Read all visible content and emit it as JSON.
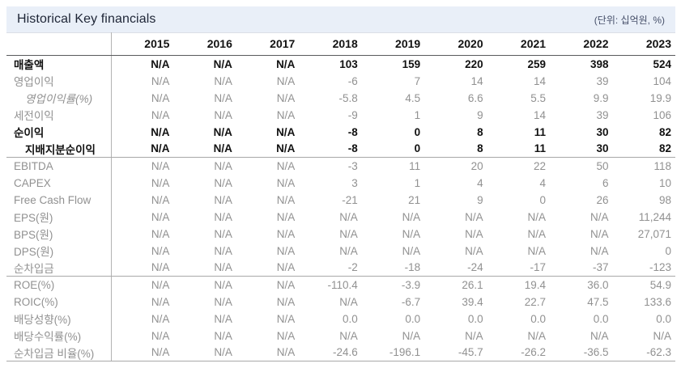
{
  "header": {
    "title": "Historical Key financials",
    "unit_note": "(단위: 십억원, %)"
  },
  "table": {
    "columns": [
      "2015",
      "2016",
      "2017",
      "2018",
      "2019",
      "2020",
      "2021",
      "2022",
      "2023"
    ],
    "rows": [
      {
        "label": "매출액",
        "emphasis": true,
        "indent": false,
        "italic": false,
        "group_end": false,
        "values": [
          "N/A",
          "N/A",
          "N/A",
          "103",
          "159",
          "220",
          "259",
          "398",
          "524"
        ]
      },
      {
        "label": "영업이익",
        "emphasis": false,
        "indent": false,
        "italic": false,
        "group_end": false,
        "values": [
          "N/A",
          "N/A",
          "N/A",
          "-6",
          "7",
          "14",
          "14",
          "39",
          "104"
        ]
      },
      {
        "label": "영업이익률(%)",
        "emphasis": false,
        "indent": true,
        "italic": true,
        "group_end": false,
        "values": [
          "N/A",
          "N/A",
          "N/A",
          "-5.8",
          "4.5",
          "6.6",
          "5.5",
          "9.9",
          "19.9"
        ]
      },
      {
        "label": "세전이익",
        "emphasis": false,
        "indent": false,
        "italic": false,
        "group_end": false,
        "values": [
          "N/A",
          "N/A",
          "N/A",
          "-9",
          "1",
          "9",
          "14",
          "39",
          "106"
        ]
      },
      {
        "label": "순이익",
        "emphasis": true,
        "indent": false,
        "italic": false,
        "group_end": false,
        "values": [
          "N/A",
          "N/A",
          "N/A",
          "-8",
          "0",
          "8",
          "11",
          "30",
          "82"
        ]
      },
      {
        "label": "지배지분순이익",
        "emphasis": true,
        "indent": true,
        "italic": false,
        "group_end": true,
        "values": [
          "N/A",
          "N/A",
          "N/A",
          "-8",
          "0",
          "8",
          "11",
          "30",
          "82"
        ]
      },
      {
        "label": "EBITDA",
        "emphasis": false,
        "indent": false,
        "italic": false,
        "group_end": false,
        "values": [
          "N/A",
          "N/A",
          "N/A",
          "-3",
          "11",
          "20",
          "22",
          "50",
          "118"
        ]
      },
      {
        "label": "CAPEX",
        "emphasis": false,
        "indent": false,
        "italic": false,
        "group_end": false,
        "values": [
          "N/A",
          "N/A",
          "N/A",
          "3",
          "1",
          "4",
          "4",
          "6",
          "10"
        ]
      },
      {
        "label": "Free Cash Flow",
        "emphasis": false,
        "indent": false,
        "italic": false,
        "group_end": false,
        "values": [
          "N/A",
          "N/A",
          "N/A",
          "-21",
          "21",
          "9",
          "0",
          "26",
          "98"
        ]
      },
      {
        "label": "EPS(원)",
        "emphasis": false,
        "indent": false,
        "italic": false,
        "group_end": false,
        "values": [
          "N/A",
          "N/A",
          "N/A",
          "N/A",
          "N/A",
          "N/A",
          "N/A",
          "N/A",
          "11,244"
        ]
      },
      {
        "label": "BPS(원)",
        "emphasis": false,
        "indent": false,
        "italic": false,
        "group_end": false,
        "values": [
          "N/A",
          "N/A",
          "N/A",
          "N/A",
          "N/A",
          "N/A",
          "N/A",
          "N/A",
          "27,071"
        ]
      },
      {
        "label": "DPS(원)",
        "emphasis": false,
        "indent": false,
        "italic": false,
        "group_end": false,
        "values": [
          "N/A",
          "N/A",
          "N/A",
          "N/A",
          "N/A",
          "N/A",
          "N/A",
          "N/A",
          "0"
        ]
      },
      {
        "label": "순차입금",
        "emphasis": false,
        "indent": false,
        "italic": false,
        "group_end": true,
        "values": [
          "N/A",
          "N/A",
          "N/A",
          "-2",
          "-18",
          "-24",
          "-17",
          "-37",
          "-123"
        ]
      },
      {
        "label": "ROE(%)",
        "emphasis": false,
        "indent": false,
        "italic": false,
        "group_end": false,
        "values": [
          "N/A",
          "N/A",
          "N/A",
          "-110.4",
          "-3.9",
          "26.1",
          "19.4",
          "36.0",
          "54.9"
        ]
      },
      {
        "label": "ROIC(%)",
        "emphasis": false,
        "indent": false,
        "italic": false,
        "group_end": false,
        "values": [
          "N/A",
          "N/A",
          "N/A",
          "N/A",
          "-6.7",
          "39.4",
          "22.7",
          "47.5",
          "133.6"
        ]
      },
      {
        "label": "배당성향(%)",
        "emphasis": false,
        "indent": false,
        "italic": false,
        "group_end": false,
        "values": [
          "N/A",
          "N/A",
          "N/A",
          "0.0",
          "0.0",
          "0.0",
          "0.0",
          "0.0",
          "0.0"
        ]
      },
      {
        "label": "배당수익률(%)",
        "emphasis": false,
        "indent": false,
        "italic": false,
        "group_end": false,
        "values": [
          "N/A",
          "N/A",
          "N/A",
          "N/A",
          "N/A",
          "N/A",
          "N/A",
          "N/A",
          "N/A"
        ]
      },
      {
        "label": "순차입금 비율(%)",
        "emphasis": false,
        "indent": false,
        "italic": false,
        "group_end": false,
        "values": [
          "N/A",
          "N/A",
          "N/A",
          "-24.6",
          "-196.1",
          "-45.7",
          "-26.2",
          "-36.5",
          "-62.3"
        ]
      }
    ]
  }
}
